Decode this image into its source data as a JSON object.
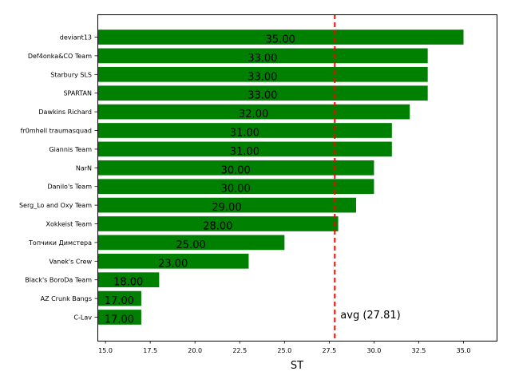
{
  "chart_data": {
    "type": "bar",
    "orientation": "horizontal",
    "categories": [
      "deviant13",
      "Def4onka&CO Team",
      "Starbury SLS",
      "SPARTAN",
      "Dawkins Richard",
      "fr0mhell traumasquad",
      "Giannis Team",
      "NarN",
      "Danilo's Team",
      "Serg_Lo and Oxy Team",
      "Xokkeist Team",
      "Топчики Димстера",
      "Vanek's Crew",
      "Black's BoroDa Team",
      "AZ Crunk Bangs",
      "C-Lav"
    ],
    "values": [
      35,
      33,
      33,
      33,
      32,
      31,
      31,
      30,
      30,
      29,
      28,
      25,
      23,
      18,
      17,
      17
    ],
    "data_labels": [
      "35.00",
      "33.00",
      "33.00",
      "33.00",
      "32.00",
      "31.00",
      "31.00",
      "30.00",
      "30.00",
      "29.00",
      "28.00",
      "25.00",
      "23.00",
      "18.00",
      "17.00",
      "17.00"
    ],
    "xlabel": "ST",
    "ylabel": "",
    "title": "",
    "xlim": [
      14.55,
      36.85
    ],
    "xticks": [
      15.0,
      17.5,
      20.0,
      22.5,
      25.0,
      27.5,
      30.0,
      32.5,
      35.0
    ],
    "xtick_labels": [
      "15.0",
      "17.5",
      "20.0",
      "22.5",
      "25.0",
      "27.5",
      "30.0",
      "32.5",
      "35.0"
    ],
    "average": 27.81,
    "average_label": "avg (27.81)",
    "grid": false,
    "colors": {
      "bar": "#008000",
      "average_line": "#ff0000",
      "text": "#000000"
    }
  }
}
